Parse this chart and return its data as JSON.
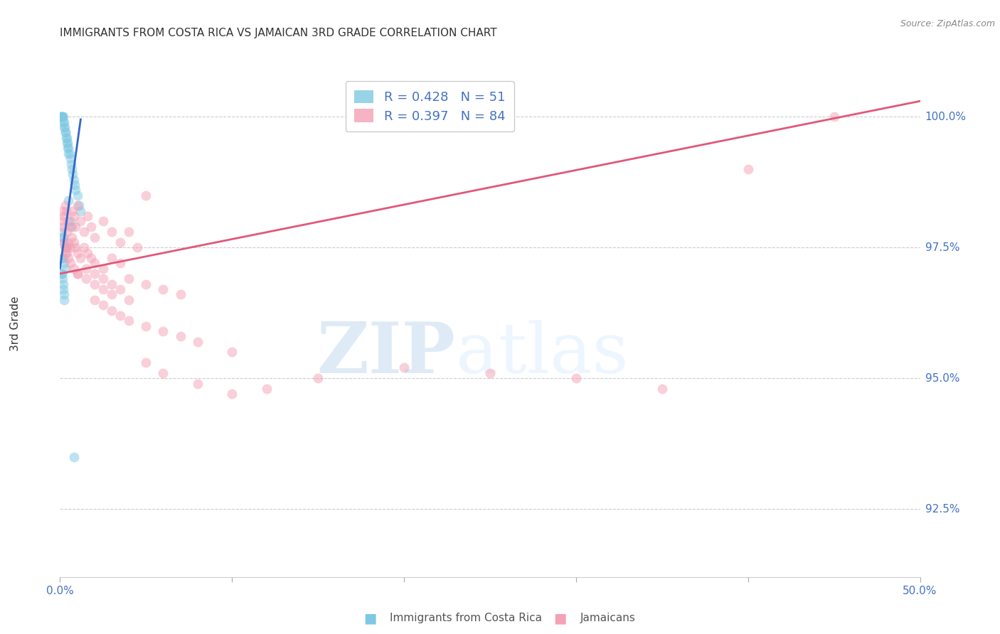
{
  "title": "IMMIGRANTS FROM COSTA RICA VS JAMAICAN 3RD GRADE CORRELATION CHART",
  "source": "Source: ZipAtlas.com",
  "ylabel": "3rd Grade",
  "ylabel_ticks": [
    "92.5%",
    "95.0%",
    "97.5%",
    "100.0%"
  ],
  "ylabel_values": [
    92.5,
    95.0,
    97.5,
    100.0
  ],
  "xmin": 0.0,
  "xmax": 50.0,
  "ymin": 91.2,
  "ymax": 100.9,
  "legend_blue_r": "0.428",
  "legend_blue_n": "51",
  "legend_pink_r": "0.397",
  "legend_pink_n": "84",
  "legend_label_blue": "Immigrants from Costa Rica",
  "legend_label_pink": "Jamaicans",
  "blue_color": "#7ec8e3",
  "pink_color": "#f4a0b5",
  "blue_line_color": "#3366cc",
  "pink_line_color": "#e05878",
  "marker_size": 100,
  "blue_alpha": 0.5,
  "pink_alpha": 0.5,
  "blue_scatter_x": [
    0.05,
    0.08,
    0.1,
    0.12,
    0.15,
    0.18,
    0.2,
    0.22,
    0.25,
    0.28,
    0.3,
    0.32,
    0.35,
    0.38,
    0.4,
    0.42,
    0.45,
    0.48,
    0.5,
    0.55,
    0.6,
    0.65,
    0.7,
    0.75,
    0.8,
    0.85,
    0.9,
    1.0,
    1.1,
    1.2,
    0.1,
    0.15,
    0.2,
    0.25,
    0.3,
    0.35,
    0.15,
    0.2,
    0.25,
    0.3,
    0.1,
    0.12,
    0.15,
    0.18,
    0.2,
    0.22,
    0.25,
    0.5,
    0.6,
    0.7,
    0.8
  ],
  "blue_scatter_y": [
    100.0,
    100.0,
    100.0,
    100.0,
    100.0,
    100.0,
    99.9,
    99.9,
    99.8,
    99.8,
    99.7,
    99.7,
    99.6,
    99.6,
    99.5,
    99.5,
    99.4,
    99.4,
    99.3,
    99.3,
    99.2,
    99.1,
    99.0,
    98.9,
    98.8,
    98.7,
    98.6,
    98.5,
    98.3,
    98.2,
    97.8,
    97.7,
    97.7,
    97.6,
    97.5,
    97.5,
    97.3,
    97.3,
    97.2,
    97.1,
    97.0,
    97.0,
    96.9,
    96.8,
    96.7,
    96.6,
    96.5,
    98.4,
    98.0,
    97.9,
    93.5
  ],
  "pink_scatter_x": [
    0.1,
    0.15,
    0.2,
    0.25,
    0.3,
    0.35,
    0.4,
    0.5,
    0.6,
    0.7,
    0.8,
    0.9,
    1.0,
    1.2,
    1.4,
    1.6,
    1.8,
    2.0,
    2.5,
    3.0,
    3.5,
    4.0,
    4.5,
    5.0,
    0.3,
    0.4,
    0.5,
    0.6,
    0.7,
    0.8,
    0.9,
    1.0,
    1.2,
    1.4,
    1.6,
    1.8,
    2.0,
    2.5,
    3.0,
    3.5,
    1.0,
    1.5,
    2.0,
    2.5,
    3.0,
    3.5,
    4.0,
    5.0,
    6.0,
    7.0,
    2.0,
    2.5,
    3.0,
    3.5,
    4.0,
    5.0,
    6.0,
    7.0,
    8.0,
    10.0,
    5.0,
    6.0,
    8.0,
    10.0,
    12.0,
    15.0,
    20.0,
    25.0,
    30.0,
    35.0,
    40.0,
    45.0,
    0.2,
    0.3,
    0.4,
    0.5,
    0.6,
    0.8,
    1.0,
    1.5,
    2.0,
    2.5,
    3.0,
    4.0
  ],
  "pink_scatter_y": [
    98.2,
    98.0,
    97.9,
    98.1,
    98.3,
    98.2,
    97.8,
    98.0,
    97.9,
    98.2,
    98.1,
    97.9,
    98.3,
    98.0,
    97.8,
    98.1,
    97.9,
    97.7,
    98.0,
    97.8,
    97.6,
    97.8,
    97.5,
    98.5,
    97.4,
    97.5,
    97.6,
    97.5,
    97.7,
    97.6,
    97.5,
    97.4,
    97.3,
    97.5,
    97.4,
    97.3,
    97.2,
    97.1,
    97.3,
    97.2,
    97.0,
    97.1,
    97.0,
    96.9,
    96.8,
    96.7,
    96.9,
    96.8,
    96.7,
    96.6,
    96.5,
    96.4,
    96.3,
    96.2,
    96.1,
    96.0,
    95.9,
    95.8,
    95.7,
    95.5,
    95.3,
    95.1,
    94.9,
    94.7,
    94.8,
    95.0,
    95.2,
    95.1,
    95.0,
    94.8,
    99.0,
    100.0,
    97.6,
    97.5,
    97.4,
    97.3,
    97.2,
    97.1,
    97.0,
    96.9,
    96.8,
    96.7,
    96.6,
    96.5
  ],
  "blue_line_x": [
    0.0,
    1.2
  ],
  "blue_line_y": [
    97.1,
    99.95
  ],
  "pink_line_x": [
    0.0,
    50.0
  ],
  "pink_line_y": [
    97.0,
    100.3
  ],
  "watermark_zip": "ZIP",
  "watermark_atlas": "atlas",
  "background_color": "#ffffff",
  "grid_color": "#cccccc",
  "tick_color": "#4472c4",
  "title_color": "#333333",
  "source_color": "#888888"
}
